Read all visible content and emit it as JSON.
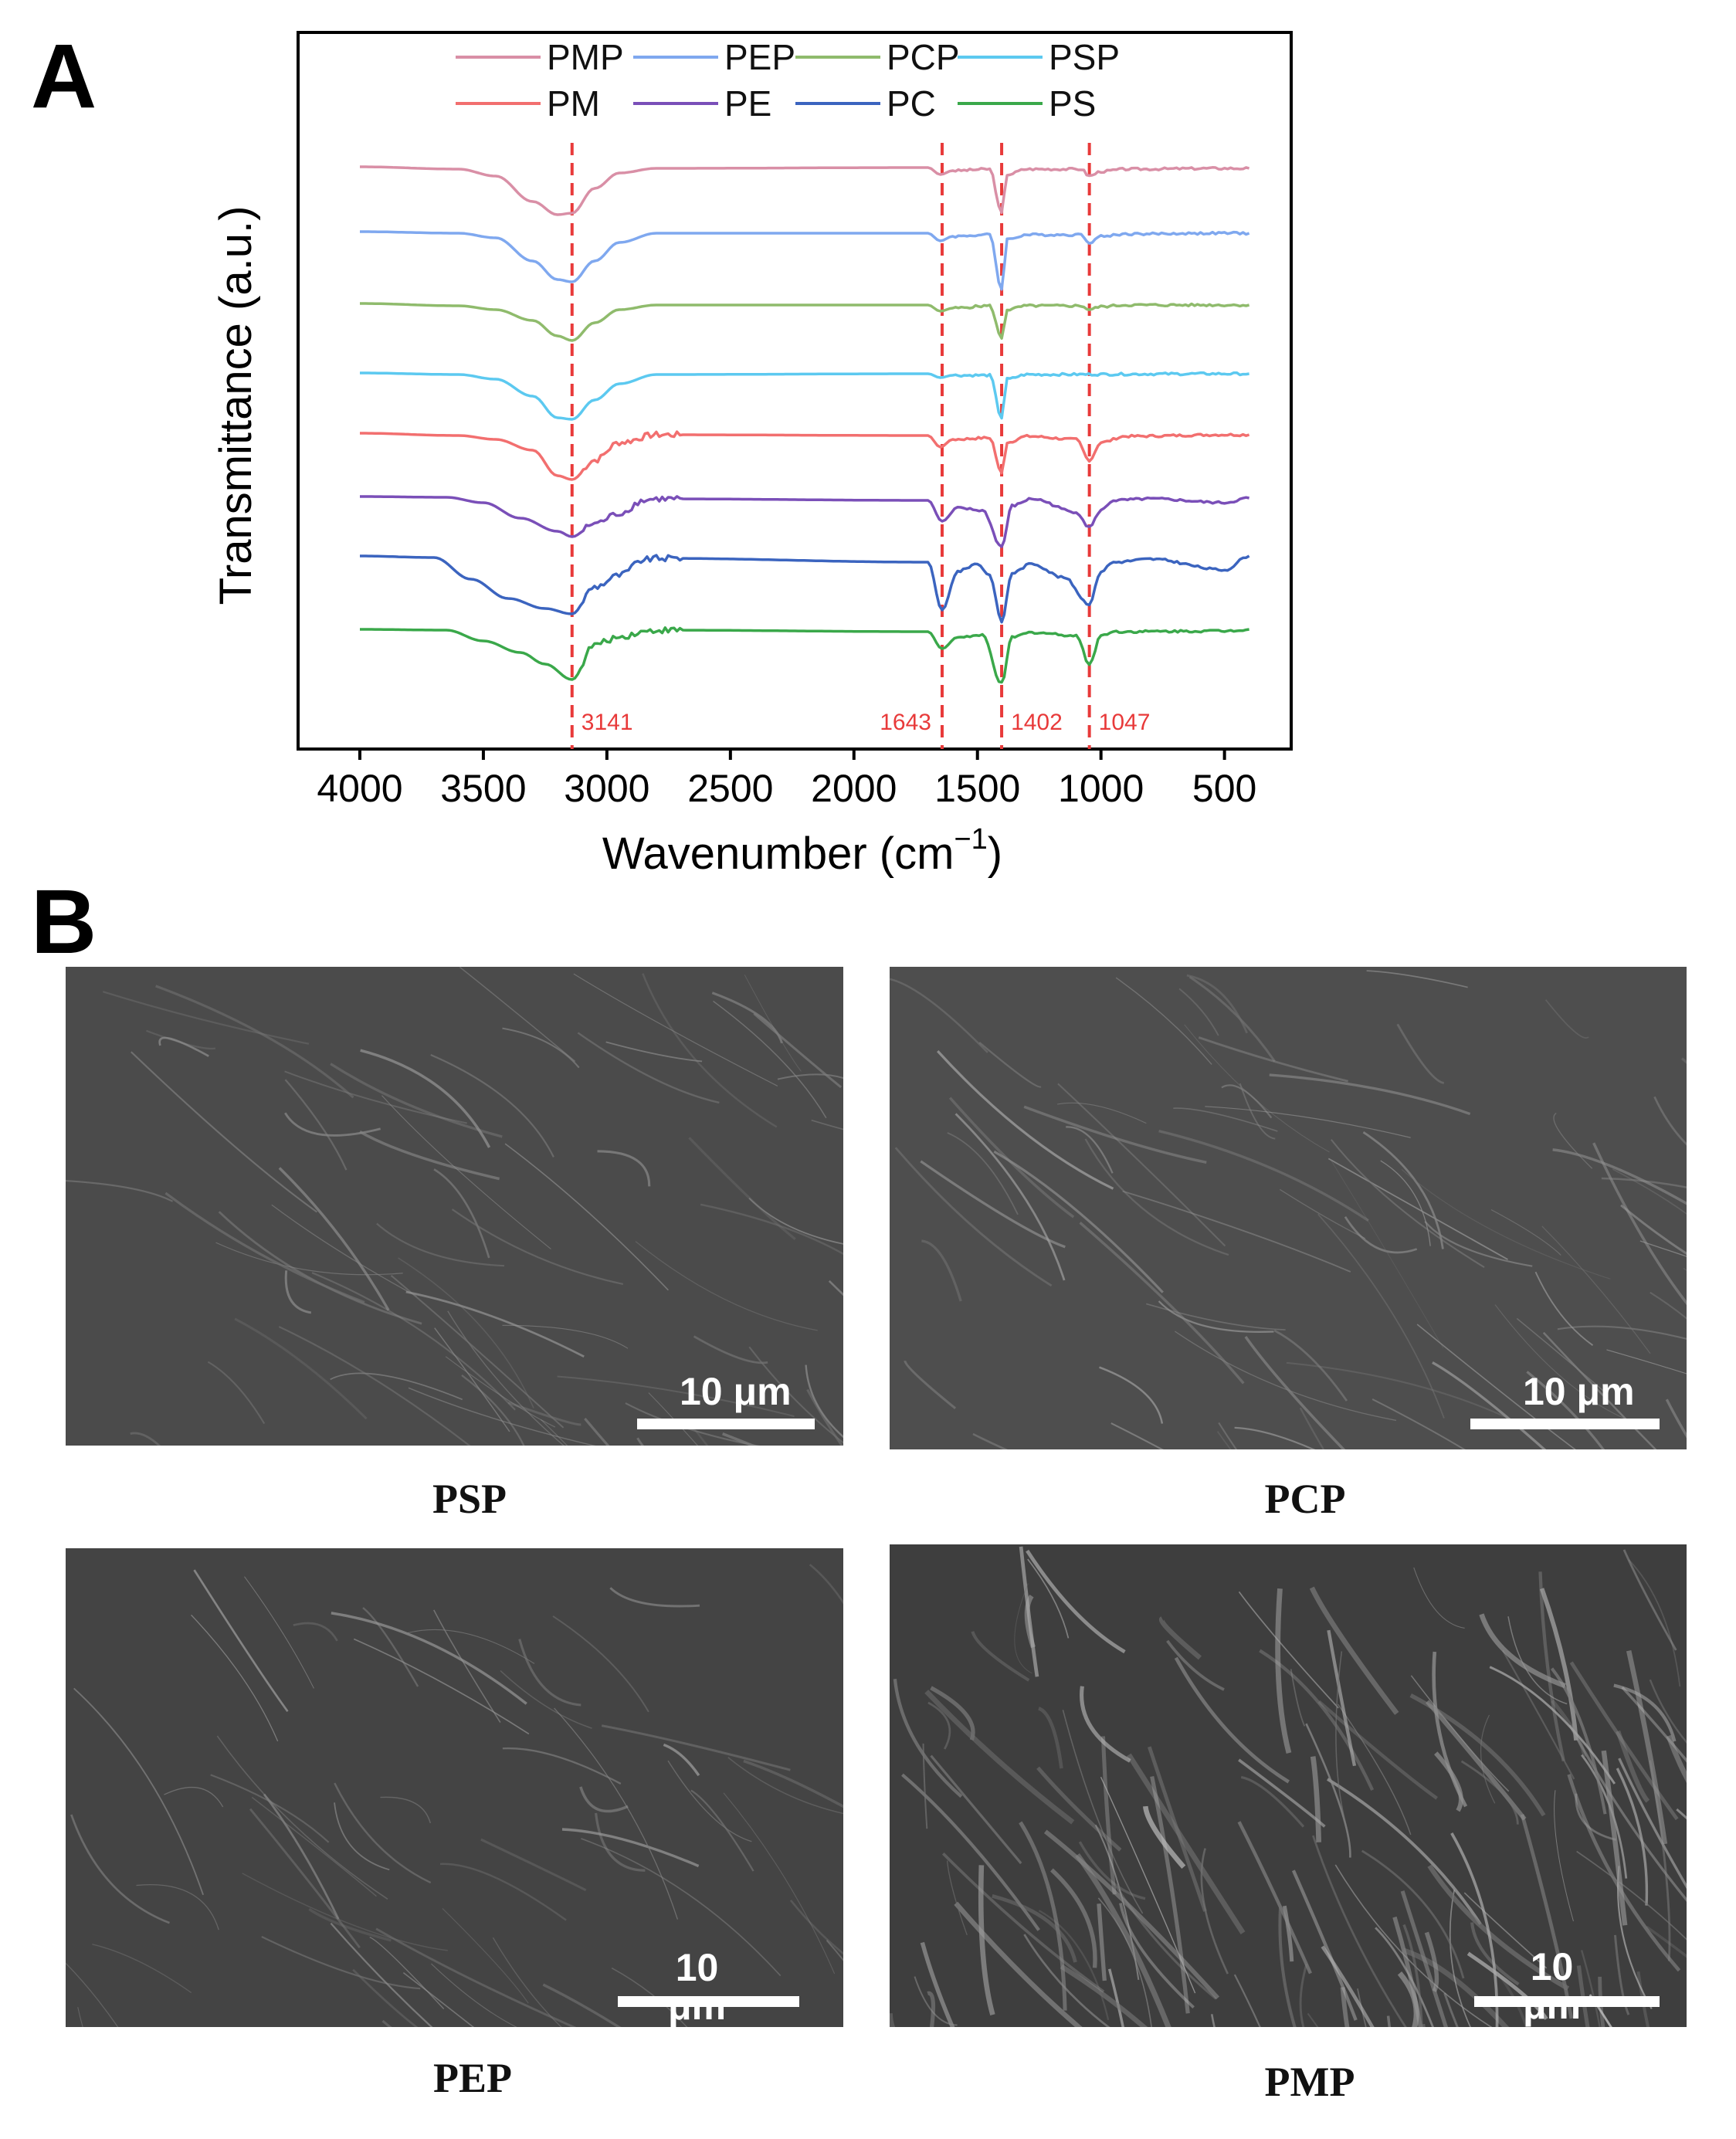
{
  "panels": {
    "a_label": "A",
    "b_label": "B"
  },
  "chart_data": {
    "type": "line",
    "xlabel": "Wavenumber (cm",
    "xlabel_sup": "−1",
    "xlabel_close": ")",
    "ylabel": "Transmittance (a.u.)",
    "xlim": [
      4250,
      230
    ],
    "x_reversed": true,
    "x_ticks": [
      4000,
      3500,
      3000,
      2500,
      2000,
      1500,
      1000,
      500
    ],
    "y_ticks": "none (arbitrary units, curves vertically offset)",
    "grid": false,
    "legend_placement": "top-center, inside plot, two rows",
    "legend": [
      {
        "name": "PMP",
        "color": "#d98fa6"
      },
      {
        "name": "PEP",
        "color": "#7fa8ef"
      },
      {
        "name": "PCP",
        "color": "#8fbb6c"
      },
      {
        "name": "PSP",
        "color": "#5cc9f0"
      },
      {
        "name": "PM",
        "color": "#f26f6f"
      },
      {
        "name": "PE",
        "color": "#7a4fb8"
      },
      {
        "name": "PC",
        "color": "#3b64bf"
      },
      {
        "name": "PS",
        "color": "#3aa84a"
      }
    ],
    "reference_lines": [
      {
        "x": 3141,
        "label": "3141"
      },
      {
        "x": 1643,
        "label": "1643"
      },
      {
        "x": 1402,
        "label": "1402"
      },
      {
        "x": 1047,
        "label": "1047"
      }
    ],
    "reference_line_color": "#e83a3a",
    "series": [
      {
        "name": "PMP",
        "color": "#d98fa6",
        "points": [
          [
            4000,
            0
          ],
          [
            3600,
            -3
          ],
          [
            3450,
            -12
          ],
          [
            3300,
            -45
          ],
          [
            3200,
            -62
          ],
          [
            3141,
            -60
          ],
          [
            3050,
            -28
          ],
          [
            2950,
            -8
          ],
          [
            2800,
            -2
          ],
          [
            1700,
            -1
          ],
          [
            1650,
            -10
          ],
          [
            1600,
            -5
          ],
          [
            1450,
            -3
          ],
          [
            1402,
            -60
          ],
          [
            1380,
            -10
          ],
          [
            1300,
            -3
          ],
          [
            1080,
            -3
          ],
          [
            1047,
            -12
          ],
          [
            1000,
            -6
          ],
          [
            900,
            -3
          ],
          [
            500,
            -2
          ],
          [
            400,
            -2
          ]
        ]
      },
      {
        "name": "PEP",
        "color": "#7fa8ef",
        "points": [
          [
            4000,
            0
          ],
          [
            3600,
            -2
          ],
          [
            3450,
            -8
          ],
          [
            3300,
            -38
          ],
          [
            3200,
            -62
          ],
          [
            3141,
            -65
          ],
          [
            3050,
            -38
          ],
          [
            2950,
            -14
          ],
          [
            2800,
            -2
          ],
          [
            1700,
            -2
          ],
          [
            1650,
            -12
          ],
          [
            1600,
            -6
          ],
          [
            1450,
            -4
          ],
          [
            1402,
            -75
          ],
          [
            1380,
            -10
          ],
          [
            1300,
            -4
          ],
          [
            1080,
            -4
          ],
          [
            1047,
            -14
          ],
          [
            1000,
            -6
          ],
          [
            900,
            -3
          ],
          [
            500,
            -2
          ],
          [
            400,
            -2
          ]
        ]
      },
      {
        "name": "PCP",
        "color": "#8fbb6c",
        "points": [
          [
            4000,
            0
          ],
          [
            3600,
            -3
          ],
          [
            3450,
            -8
          ],
          [
            3300,
            -22
          ],
          [
            3200,
            -42
          ],
          [
            3141,
            -48
          ],
          [
            3050,
            -25
          ],
          [
            2950,
            -8
          ],
          [
            2800,
            -2
          ],
          [
            1700,
            -2
          ],
          [
            1650,
            -10
          ],
          [
            1600,
            -6
          ],
          [
            1450,
            -3
          ],
          [
            1402,
            -45
          ],
          [
            1380,
            -8
          ],
          [
            1300,
            -3
          ],
          [
            1080,
            -3
          ],
          [
            1047,
            -8
          ],
          [
            1000,
            -4
          ],
          [
            900,
            -2
          ],
          [
            500,
            -2
          ],
          [
            400,
            -2
          ]
        ]
      },
      {
        "name": "PSP",
        "color": "#5cc9f0",
        "points": [
          [
            4000,
            0
          ],
          [
            3600,
            -2
          ],
          [
            3450,
            -8
          ],
          [
            3300,
            -30
          ],
          [
            3200,
            -58
          ],
          [
            3141,
            -60
          ],
          [
            3050,
            -35
          ],
          [
            2950,
            -14
          ],
          [
            2800,
            -2
          ],
          [
            1700,
            -1
          ],
          [
            1650,
            -6
          ],
          [
            1600,
            -3
          ],
          [
            1450,
            -3
          ],
          [
            1402,
            -58
          ],
          [
            1380,
            -8
          ],
          [
            1300,
            -2
          ],
          [
            500,
            -1
          ],
          [
            400,
            -1
          ]
        ]
      },
      {
        "name": "PM",
        "color": "#f26f6f",
        "points": [
          [
            4000,
            0
          ],
          [
            3600,
            -3
          ],
          [
            3450,
            -8
          ],
          [
            3300,
            -22
          ],
          [
            3200,
            -55
          ],
          [
            3141,
            -60
          ],
          [
            3050,
            -35
          ],
          [
            2950,
            -12
          ],
          [
            2800,
            -2
          ],
          [
            1700,
            -3
          ],
          [
            1650,
            -18
          ],
          [
            1600,
            -8
          ],
          [
            1450,
            -6
          ],
          [
            1402,
            -52
          ],
          [
            1380,
            -12
          ],
          [
            1300,
            -4
          ],
          [
            1100,
            -8
          ],
          [
            1047,
            -35
          ],
          [
            1000,
            -12
          ],
          [
            900,
            -4
          ],
          [
            500,
            -2
          ],
          [
            400,
            -2
          ]
        ]
      },
      {
        "name": "PE",
        "color": "#7a4fb8",
        "points": [
          [
            4000,
            0
          ],
          [
            3650,
            -1
          ],
          [
            3500,
            -8
          ],
          [
            3350,
            -28
          ],
          [
            3200,
            -45
          ],
          [
            3141,
            -52
          ],
          [
            3050,
            -35
          ],
          [
            2950,
            -22
          ],
          [
            2850,
            -5
          ],
          [
            2800,
            -3
          ],
          [
            1700,
            -5
          ],
          [
            1643,
            -32
          ],
          [
            1580,
            -15
          ],
          [
            1480,
            -18
          ],
          [
            1402,
            -65
          ],
          [
            1360,
            -12
          ],
          [
            1280,
            -3
          ],
          [
            1100,
            -20
          ],
          [
            1047,
            -40
          ],
          [
            1000,
            -18
          ],
          [
            950,
            -5
          ],
          [
            800,
            -3
          ],
          [
            500,
            -8
          ],
          [
            400,
            -2
          ]
        ]
      },
      {
        "name": "PC",
        "color": "#3b64bf",
        "points": [
          [
            4000,
            0
          ],
          [
            3700,
            -2
          ],
          [
            3550,
            -30
          ],
          [
            3400,
            -55
          ],
          [
            3250,
            -68
          ],
          [
            3141,
            -75
          ],
          [
            3050,
            -40
          ],
          [
            2950,
            -25
          ],
          [
            2850,
            -5
          ],
          [
            2800,
            -3
          ],
          [
            1700,
            -8
          ],
          [
            1643,
            -70
          ],
          [
            1580,
            -20
          ],
          [
            1500,
            -10
          ],
          [
            1450,
            -25
          ],
          [
            1402,
            -85
          ],
          [
            1360,
            -22
          ],
          [
            1280,
            -10
          ],
          [
            1150,
            -28
          ],
          [
            1047,
            -62
          ],
          [
            1000,
            -20
          ],
          [
            950,
            -8
          ],
          [
            800,
            -4
          ],
          [
            500,
            -18
          ],
          [
            400,
            0
          ]
        ]
      },
      {
        "name": "PS",
        "color": "#3aa84a",
        "points": [
          [
            4000,
            0
          ],
          [
            3650,
            -1
          ],
          [
            3500,
            -15
          ],
          [
            3350,
            -30
          ],
          [
            3250,
            -45
          ],
          [
            3141,
            -65
          ],
          [
            3050,
            -20
          ],
          [
            2950,
            -10
          ],
          [
            2850,
            -3
          ],
          [
            2800,
            -1
          ],
          [
            1700,
            -3
          ],
          [
            1643,
            -25
          ],
          [
            1580,
            -10
          ],
          [
            1480,
            -8
          ],
          [
            1402,
            -70
          ],
          [
            1360,
            -10
          ],
          [
            1280,
            -4
          ],
          [
            1100,
            -8
          ],
          [
            1047,
            -45
          ],
          [
            1000,
            -8
          ],
          [
            950,
            -3
          ],
          [
            500,
            -2
          ],
          [
            400,
            0
          ]
        ]
      }
    ]
  },
  "sem_images": [
    {
      "caption": "PSP",
      "scale_label": "10 μm"
    },
    {
      "caption": "PCP",
      "scale_label": "10 μm"
    },
    {
      "caption": "PEP",
      "scale_label": "10\nμm"
    },
    {
      "caption": "PMP",
      "scale_label": "10\nμm"
    }
  ]
}
